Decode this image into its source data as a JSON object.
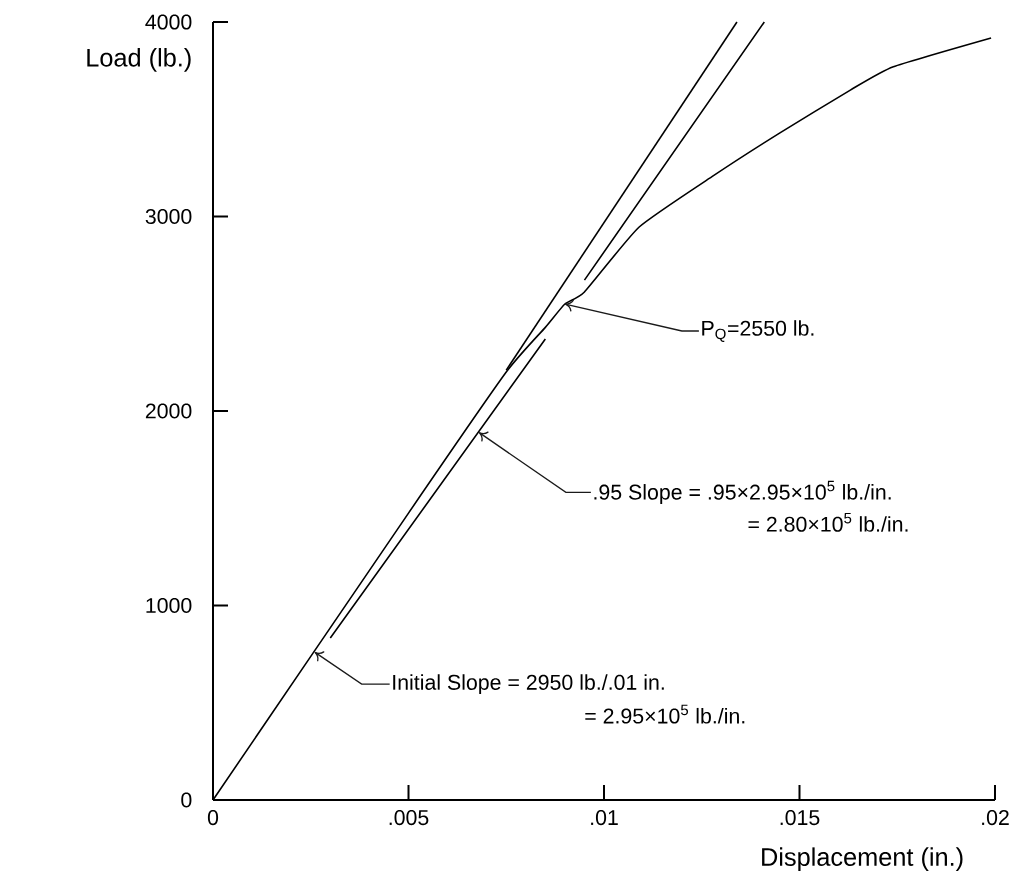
{
  "chart_data": {
    "type": "line",
    "xlabel": "Displacement (in.)",
    "ylabel": "Load (lb.)",
    "xlim": [
      0,
      0.02
    ],
    "ylim": [
      0,
      4000
    ],
    "xticks": [
      0,
      {
        "value": 0.005,
        "label": ".005"
      },
      {
        "value": 0.01,
        "label": ".01"
      },
      {
        "value": 0.015,
        "label": ".015"
      },
      {
        "value": 0.02,
        "label": ".02"
      }
    ],
    "yticks": [
      0,
      1000,
      2000,
      3000,
      4000
    ],
    "series": [
      {
        "color": "#000000",
        "x": [
          0,
          0.005,
          0.0075,
          0.0085,
          0.009,
          0.0095,
          0.0109,
          0.0128,
          0.0145,
          0.0163,
          0.0174,
          0.0199
        ],
        "values": [
          0,
          1475,
          2200,
          2430,
          2550,
          2612,
          2946,
          3210,
          3430,
          3650,
          3770,
          3918
        ]
      },
      {
        "color": "#000000",
        "x": [
          0.0075,
          0.0134
        ],
        "values": [
          2210,
          4000
        ]
      },
      {
        "color": "#000000",
        "x": [
          0.003,
          0.0085,
          0.009,
          0.0095,
          0.0141
        ],
        "values": [
          833,
          2370,
          null,
          2673,
          4000
        ]
      }
    ],
    "annotations": [
      {
        "text": "Initial Slope = 2950 lb./.01 in.",
        "x": 0.0026,
        "y": 760
      },
      "= 2.95×10$^{5}$ lb./in.",
      {
        "text": ".95 Slope = .95×2.95×10$^{5}$ lb./in.",
        "x": 0.0068,
        "y": 1890
      },
      "= 2.80×10$^{5}$ lb./in.",
      {
        "text": "P$_{Q}$=2550 lb.",
        "x": 0.009,
        "y": 2550
      }
    ]
  }
}
